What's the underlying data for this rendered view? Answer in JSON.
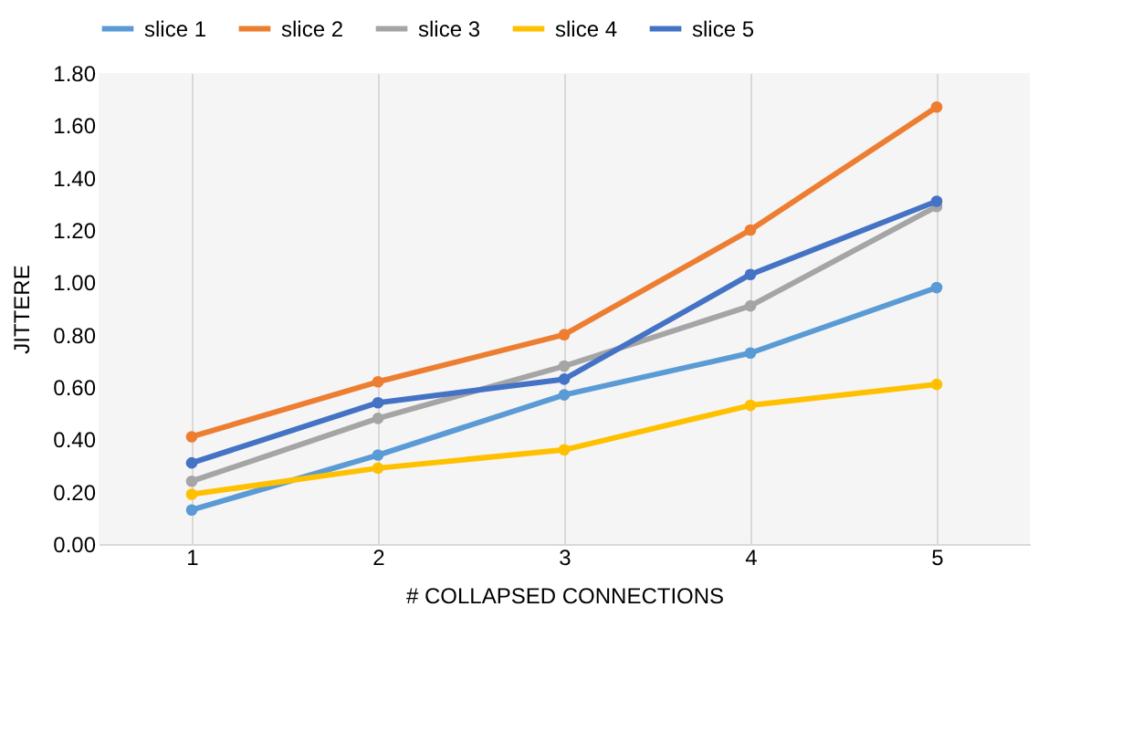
{
  "chart_data": {
    "type": "line",
    "xlabel": "# COLLAPSED CONNECTIONS",
    "ylabel": "JITTERE",
    "categories": [
      "1",
      "2",
      "3",
      "4",
      "5"
    ],
    "series": [
      {
        "name": "slice 1",
        "color": "#5b9bd5",
        "values": [
          0.13,
          0.34,
          0.57,
          0.73,
          0.98
        ]
      },
      {
        "name": "slice 2",
        "color": "#ed7d31",
        "values": [
          0.41,
          0.62,
          0.8,
          1.2,
          1.67
        ]
      },
      {
        "name": "slice 3",
        "color": "#a5a5a5",
        "values": [
          0.24,
          0.48,
          0.68,
          0.91,
          1.29
        ]
      },
      {
        "name": "slice 4",
        "color": "#ffc000",
        "values": [
          0.19,
          0.29,
          0.36,
          0.53,
          0.61
        ]
      },
      {
        "name": "slice 5",
        "color": "#4472c4",
        "values": [
          0.31,
          0.54,
          0.63,
          1.03,
          1.31
        ]
      }
    ],
    "ylim": [
      0,
      1.8
    ],
    "yticks": [
      {
        "value": 0,
        "label": "0.00"
      },
      {
        "value": 0.2,
        "label": "0.20"
      },
      {
        "value": 0.4,
        "label": "0.40"
      },
      {
        "value": 0.6,
        "label": "0.60"
      },
      {
        "value": 0.8,
        "label": "0.80"
      },
      {
        "value": 1.0,
        "label": "1.00"
      },
      {
        "value": 1.2,
        "label": "1.20"
      },
      {
        "value": 1.4,
        "label": "1.40"
      },
      {
        "value": 1.6,
        "label": "1.60"
      },
      {
        "value": 1.8,
        "label": "1.80"
      }
    ],
    "grid": "x",
    "legend": "top",
    "marker": "circle",
    "line_style": "solid"
  }
}
